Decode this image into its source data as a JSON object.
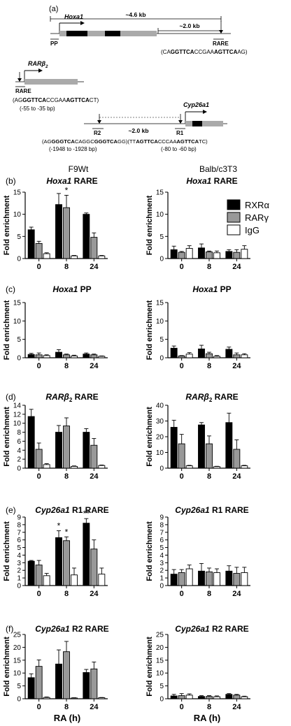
{
  "diagram": {
    "label": "(a)",
    "hoxa1": {
      "span_total": "~4.6 kb",
      "span_rare": "~2.0 kb",
      "gene": "Hoxa1",
      "pp": "PP",
      "rare": "RARE",
      "seq_pre": "(CA",
      "seq_b1": "GGTTCA",
      "seq_mid": "CCGAA",
      "seq_b2": "AGTTCA",
      "seq_post": "AG)"
    },
    "rarb2": {
      "gene_base": "RARβ",
      "gene_sub": "2",
      "rare": "RARE",
      "seq_pre": "(AG",
      "seq_b1": "GGTTCA",
      "seq_mid": "CCGAA",
      "seq_b2": "AGTTCA",
      "seq_post": "CT)",
      "pos": "(-55 to -35 bp)"
    },
    "cyp26a1": {
      "gene": "Cyp26a1",
      "r2": "R2",
      "r1": "R1",
      "span": "~2.0 kb",
      "seq_r2_pre": "(AG",
      "seq_r2_b1": "GGGTCA",
      "seq_r2_mid": "CAGGC",
      "seq_r2_b2": "GGGTCA",
      "seq_r2_post": "GG)",
      "seq_r1_pre": "(TT",
      "seq_r1_b1": "AGTTCA",
      "seq_r1_mid": "CCCAA",
      "seq_r1_b2": "AGTTCA",
      "seq_r1_post": "TC)",
      "pos_r2": "(-1948 to -1928 bp)",
      "pos_r1": "(-80 to -60 bp)"
    }
  },
  "columns": {
    "left_title": "F9Wt",
    "right_title": "Balb/c3T3"
  },
  "legend": [
    "RXRα",
    "RARγ",
    "IgG"
  ],
  "colors": {
    "rxra": "#000000",
    "rarg": "#999999",
    "igg": "#ffffff"
  },
  "xlabel": "RA (h)",
  "chart_data": [
    {
      "panel": "(b)",
      "title_italic": "Hoxa1",
      "title_rest": " RARE",
      "type": "bar",
      "categories": [
        "0",
        "8",
        "24"
      ],
      "ylabel": "Fold enrichment",
      "ylim": [
        0,
        15
      ],
      "yticks": [
        0,
        5,
        10,
        15
      ],
      "series": [
        {
          "name": "RXRα",
          "values": [
            6.5,
            12.2,
            10.0
          ],
          "err": [
            0.6,
            2.5,
            0.3
          ]
        },
        {
          "name": "RARγ",
          "values": [
            3.4,
            11.5,
            4.8
          ],
          "err": [
            0.5,
            2.8,
            1.0
          ]
        },
        {
          "name": "IgG",
          "values": [
            1.1,
            0.6,
            0.6
          ],
          "err": [
            0.2,
            0.1,
            0.1
          ]
        }
      ],
      "annotations": [
        {
          "category": 1,
          "series": 1,
          "text": "*"
        }
      ]
    },
    {
      "panel": "",
      "title_italic": "Hoxa1",
      "title_rest": " RARE",
      "type": "bar",
      "categories": [
        "0",
        "8",
        "24"
      ],
      "ylabel": "Fold enrichment",
      "ylim": [
        0,
        15
      ],
      "yticks": [
        0,
        5,
        10,
        15
      ],
      "series": [
        {
          "name": "RXRα",
          "values": [
            2.0,
            2.4,
            1.6
          ],
          "err": [
            0.8,
            0.9,
            0.4
          ]
        },
        {
          "name": "RARγ",
          "values": [
            1.4,
            1.5,
            1.4
          ],
          "err": [
            0.2,
            0.2,
            0.6
          ]
        },
        {
          "name": "IgG",
          "values": [
            2.3,
            1.3,
            2.1
          ],
          "err": [
            0.6,
            0.4,
            0.8
          ]
        }
      ],
      "annotations": []
    },
    {
      "panel": "(c)",
      "title_italic": "Hoxa1",
      "title_rest": " PP",
      "type": "bar",
      "categories": [
        "0",
        "8",
        "24"
      ],
      "ylabel": "Fold enrichment",
      "ylim": [
        0,
        15
      ],
      "yticks": [
        0,
        5,
        10,
        15
      ],
      "series": [
        {
          "name": "RXRα",
          "values": [
            0.9,
            1.5,
            1.0
          ],
          "err": [
            0.3,
            0.7,
            0.3
          ]
        },
        {
          "name": "RARγ",
          "values": [
            0.8,
            0.8,
            0.8
          ],
          "err": [
            0.5,
            0.2,
            0.2
          ]
        },
        {
          "name": "IgG",
          "values": [
            0.6,
            0.5,
            0.4
          ],
          "err": [
            0.2,
            0.2,
            0.1
          ]
        }
      ],
      "annotations": []
    },
    {
      "panel": "",
      "title_italic": "Hoxa1",
      "title_rest": " PP",
      "type": "bar",
      "categories": [
        "0",
        "8",
        "24"
      ],
      "ylabel": "Fold enrichment",
      "ylim": [
        0,
        15
      ],
      "yticks": [
        0,
        5,
        10,
        15
      ],
      "series": [
        {
          "name": "RXRα",
          "values": [
            2.6,
            2.4,
            2.3
          ],
          "err": [
            0.6,
            1.0,
            0.6
          ]
        },
        {
          "name": "RARγ",
          "values": [
            0.5,
            1.1,
            0.8
          ],
          "err": [
            0.1,
            0.4,
            0.5
          ]
        },
        {
          "name": "IgG",
          "values": [
            1.0,
            0.4,
            0.8
          ],
          "err": [
            0.4,
            0.2,
            0.3
          ]
        }
      ],
      "annotations": []
    },
    {
      "panel": "(d)",
      "title_italic": "RARβ",
      "title_sub": "2",
      "title_rest": " RARE",
      "type": "bar",
      "categories": [
        "0",
        "8",
        "24"
      ],
      "ylabel": "Fold enrichment",
      "ylim": [
        0,
        14
      ],
      "yticks": [
        0,
        2,
        4,
        6,
        8,
        10,
        12,
        14
      ],
      "series": [
        {
          "name": "RXRα",
          "values": [
            11.5,
            8.0,
            8.0
          ],
          "err": [
            1.6,
            1.5,
            0.8
          ]
        },
        {
          "name": "RARγ",
          "values": [
            4.2,
            9.4,
            5.1
          ],
          "err": [
            1.4,
            1.8,
            1.5
          ]
        },
        {
          "name": "IgG",
          "values": [
            0.8,
            0.4,
            0.6
          ],
          "err": [
            0.2,
            0.1,
            0.1
          ]
        }
      ],
      "annotations": []
    },
    {
      "panel": "",
      "title_italic": "RARβ",
      "title_sub": "2",
      "title_rest": " RARE",
      "type": "bar",
      "categories": [
        "0",
        "8",
        "24"
      ],
      "ylabel": "Fold enrichment",
      "ylim": [
        0,
        40
      ],
      "yticks": [
        0,
        10,
        20,
        30,
        40
      ],
      "series": [
        {
          "name": "RXRα",
          "values": [
            26.0,
            27.5,
            29.0
          ],
          "err": [
            4.5,
            1.5,
            6.0
          ]
        },
        {
          "name": "RARγ",
          "values": [
            15.5,
            15.5,
            12.0
          ],
          "err": [
            6.0,
            5.0,
            6.0
          ]
        },
        {
          "name": "IgG",
          "values": [
            1.5,
            1.0,
            1.5
          ],
          "err": [
            0.3,
            0.2,
            0.3
          ]
        }
      ],
      "annotations": []
    },
    {
      "panel": "(e)",
      "title_italic": "Cyp26a1",
      "title_rest": " R1 RARE",
      "type": "bar",
      "categories": [
        "0",
        "8",
        "24"
      ],
      "ylabel": "Fold enrichment",
      "ylim": [
        0,
        9
      ],
      "yticks": [
        0,
        1,
        2,
        3,
        4,
        5,
        6,
        7,
        8,
        9
      ],
      "series": [
        {
          "name": "RXRα",
          "values": [
            3.2,
            6.3,
            8.2
          ],
          "err": [
            0.1,
            0.9,
            0.6
          ]
        },
        {
          "name": "RARγ",
          "values": [
            2.7,
            5.9,
            4.8
          ],
          "err": [
            0.6,
            0.5,
            1.2
          ]
        },
        {
          "name": "IgG",
          "values": [
            1.3,
            1.4,
            1.5
          ],
          "err": [
            0.3,
            0.9,
            0.8
          ]
        }
      ],
      "annotations": [
        {
          "category": 1,
          "series": 0,
          "text": "*"
        },
        {
          "category": 1,
          "series": 1,
          "text": "*"
        },
        {
          "category": 2,
          "series": 0,
          "text": "**"
        }
      ]
    },
    {
      "panel": "",
      "title_italic": "Cyp26a1",
      "title_rest": " R1 RARE",
      "type": "bar",
      "categories": [
        "0",
        "8",
        "24"
      ],
      "ylabel": "Fold enrichment",
      "ylim": [
        0,
        9
      ],
      "yticks": [
        0,
        1,
        2,
        3,
        4,
        5,
        6,
        7,
        8,
        9
      ],
      "series": [
        {
          "name": "RXRα",
          "values": [
            1.5,
            1.9,
            1.9
          ],
          "err": [
            0.6,
            1.0,
            0.7
          ]
        },
        {
          "name": "RARγ",
          "values": [
            1.7,
            1.8,
            1.6
          ],
          "err": [
            0.4,
            0.5,
            0.8
          ]
        },
        {
          "name": "IgG",
          "values": [
            2.2,
            1.7,
            1.7
          ],
          "err": [
            0.5,
            0.5,
            0.7
          ]
        }
      ],
      "annotations": []
    },
    {
      "panel": "(f)",
      "title_italic": "Cyp26a1",
      "title_rest": " R2 RARE",
      "type": "bar",
      "categories": [
        "0",
        "8",
        "24"
      ],
      "ylabel": "Fold enrichment",
      "ylim": [
        0,
        25
      ],
      "yticks": [
        0,
        5,
        10,
        15,
        20,
        25
      ],
      "series": [
        {
          "name": "RXRα",
          "values": [
            8.2,
            13.5,
            10.2
          ],
          "err": [
            1.5,
            5.5,
            1.2
          ]
        },
        {
          "name": "RARγ",
          "values": [
            12.6,
            18.3,
            11.6
          ],
          "err": [
            2.5,
            4.0,
            2.7
          ]
        },
        {
          "name": "IgG",
          "values": [
            0.5,
            0.3,
            0.4
          ],
          "err": [
            0.2,
            0.1,
            0.1
          ]
        }
      ],
      "annotations": []
    },
    {
      "panel": "",
      "title_italic": "Cyp26a1",
      "title_rest": " R2 RARE",
      "type": "bar",
      "categories": [
        "0",
        "8",
        "24"
      ],
      "ylabel": "Fold enrichment",
      "ylim": [
        0,
        25
      ],
      "yticks": [
        0,
        5,
        10,
        15,
        20,
        25
      ],
      "series": [
        {
          "name": "RXRα",
          "values": [
            1.1,
            0.9,
            1.7
          ],
          "err": [
            0.6,
            0.3,
            0.3
          ]
        },
        {
          "name": "RARγ",
          "values": [
            1.2,
            0.9,
            1.4
          ],
          "err": [
            0.8,
            0.3,
            0.3
          ]
        },
        {
          "name": "IgG",
          "values": [
            1.4,
            0.8,
            0.8
          ],
          "err": [
            0.5,
            0.3,
            0.2
          ]
        }
      ],
      "annotations": []
    }
  ]
}
